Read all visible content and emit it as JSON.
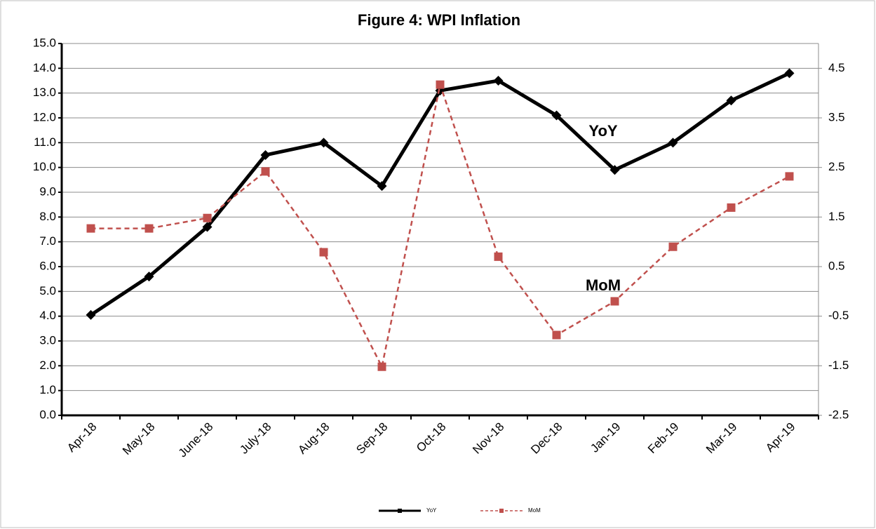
{
  "chart_data": {
    "type": "line",
    "title": "Figure 4: WPI Inflation",
    "categories": [
      "Apr-18",
      "May-18",
      "June-18",
      "July-18",
      "Aug-18",
      "Sep-18",
      "Oct-18",
      "Nov-18",
      "Dec-18",
      "Jan-19",
      "Feb-19",
      "Mar-19",
      "Apr-19"
    ],
    "series": [
      {
        "name": "YoY",
        "color": "#000000",
        "values": [
          4.05,
          5.6,
          7.6,
          10.5,
          11.0,
          9.25,
          13.1,
          13.5,
          12.1,
          9.9,
          11.0,
          12.7,
          13.8
        ]
      },
      {
        "name": "MoM",
        "color": "#c0504d",
        "axis": "y2",
        "values": [
          1.27,
          1.27,
          1.48,
          2.42,
          0.79,
          -1.52,
          4.17,
          0.7,
          -0.88,
          -0.2,
          0.9,
          1.69,
          2.32
        ]
      }
    ],
    "ylim": [
      0,
      15
    ],
    "yticks": [
      {
        "value": 0,
        "label": "0.0"
      },
      {
        "value": 1,
        "label": "1.0"
      },
      {
        "value": 2,
        "label": "2.0"
      },
      {
        "value": 3,
        "label": "3.0"
      },
      {
        "value": 4,
        "label": "4.0"
      },
      {
        "value": 5,
        "label": "5.0"
      },
      {
        "value": 6,
        "label": "6.0"
      },
      {
        "value": 7,
        "label": "7.0"
      },
      {
        "value": 8,
        "label": "8.0"
      },
      {
        "value": 9,
        "label": "9.0"
      },
      {
        "value": 10,
        "label": "10.0"
      },
      {
        "value": 11,
        "label": "11.0"
      },
      {
        "value": 12,
        "label": "12.0"
      },
      {
        "value": 13,
        "label": "13.0"
      },
      {
        "value": 14,
        "label": "14.0"
      },
      {
        "value": 15,
        "label": "15.0"
      }
    ],
    "y2lim": [
      -2.5,
      5
    ],
    "y2ticks": [
      -2.5,
      -1.5,
      -0.5,
      0.5,
      1.5,
      2.5,
      3.5,
      4.5
    ],
    "annotations": [
      "YoY",
      "MoM"
    ],
    "grid": true
  }
}
